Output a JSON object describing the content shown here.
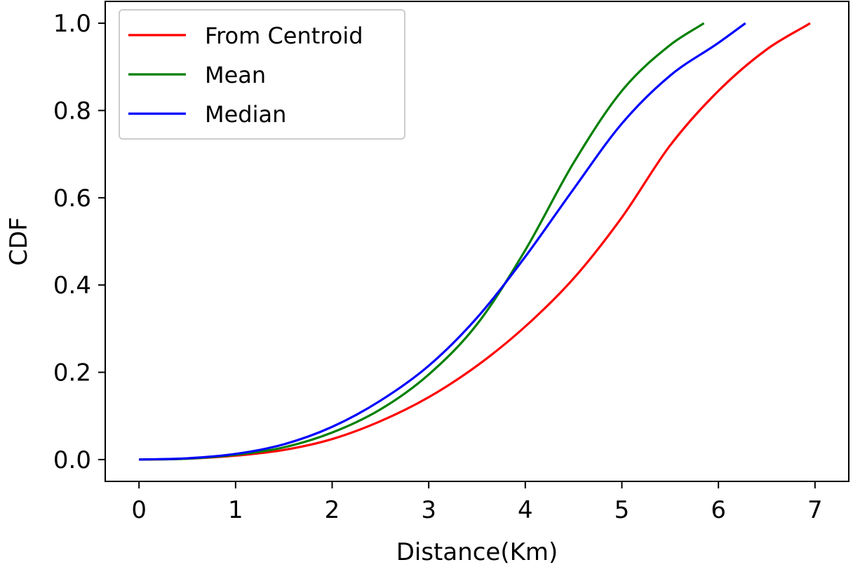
{
  "chart_data": {
    "type": "line",
    "xlabel": "Distance(Km)",
    "ylabel": "CDF",
    "xlim": [
      -0.35,
      7.35
    ],
    "ylim": [
      -0.05,
      1.05
    ],
    "xticks": [
      0,
      1,
      2,
      3,
      4,
      5,
      6,
      7
    ],
    "yticks": [
      0.0,
      0.2,
      0.4,
      0.6,
      0.8,
      1.0
    ],
    "xtick_labels": [
      "0",
      "1",
      "2",
      "3",
      "4",
      "5",
      "6",
      "7"
    ],
    "ytick_labels": [
      "0.0",
      "0.2",
      "0.4",
      "0.6",
      "0.8",
      "1.0"
    ],
    "grid": false,
    "legend_position": "top-left",
    "series": [
      {
        "name": "From Centroid",
        "color": "#ff0000",
        "x": [
          0,
          0.5,
          1.0,
          1.5,
          2.0,
          2.5,
          3.0,
          3.5,
          4.0,
          4.5,
          5.0,
          5.5,
          6.0,
          6.5,
          6.95
        ],
        "y": [
          0,
          0.002,
          0.009,
          0.022,
          0.047,
          0.088,
          0.143,
          0.215,
          0.305,
          0.415,
          0.555,
          0.72,
          0.845,
          0.94,
          1.0
        ]
      },
      {
        "name": "Mean",
        "color": "#008000",
        "x": [
          0,
          0.5,
          1.0,
          1.5,
          2.0,
          2.5,
          3.0,
          3.5,
          4.0,
          4.5,
          5.0,
          5.5,
          5.85
        ],
        "y": [
          0,
          0.002,
          0.011,
          0.028,
          0.062,
          0.115,
          0.195,
          0.31,
          0.48,
          0.68,
          0.845,
          0.95,
          1.0
        ]
      },
      {
        "name": "Median",
        "color": "#0000ff",
        "x": [
          0,
          0.5,
          1.0,
          1.5,
          2.0,
          2.5,
          3.0,
          3.5,
          4.0,
          4.5,
          5.0,
          5.5,
          6.0,
          6.28
        ],
        "y": [
          0,
          0.003,
          0.013,
          0.035,
          0.075,
          0.135,
          0.215,
          0.325,
          0.465,
          0.62,
          0.77,
          0.88,
          0.955,
          1.0
        ]
      }
    ]
  }
}
